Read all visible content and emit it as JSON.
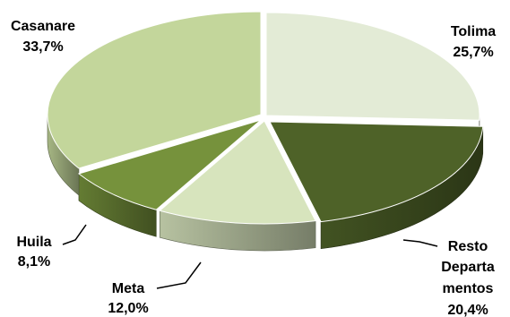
{
  "chart_data": {
    "type": "pie",
    "style": "3d-exploded",
    "start": "top",
    "direction": "clockwise",
    "slices": [
      {
        "name": "Tolima",
        "value": 25.7,
        "value_label": "25,7%",
        "color": "#e3ebd6"
      },
      {
        "name": "Resto Departamentos",
        "value": 20.4,
        "value_label": "20,4%",
        "color": "#4e6228"
      },
      {
        "name": "Meta",
        "value": 12.0,
        "value_label": "12,0%",
        "color": "#d7e4bd"
      },
      {
        "name": "Huila",
        "value": 8.1,
        "value_label": "8,1%",
        "color": "#76923c"
      },
      {
        "name": "Casanare",
        "value": 33.7,
        "value_label": "33,7%",
        "color": "#c3d69b"
      }
    ],
    "legend": "none"
  },
  "labels": {
    "tolima_name": "Tolima",
    "tolima_value": "25,7%",
    "resto_line1": "Resto",
    "resto_line2": "Departa",
    "resto_line3": "mentos",
    "resto_value": "20,4%",
    "meta_name": "Meta",
    "meta_value": "12,0%",
    "huila_name": "Huila",
    "huila_value": "8,1%",
    "casanare_name": "Casanare",
    "casanare_value": "33,7%"
  }
}
